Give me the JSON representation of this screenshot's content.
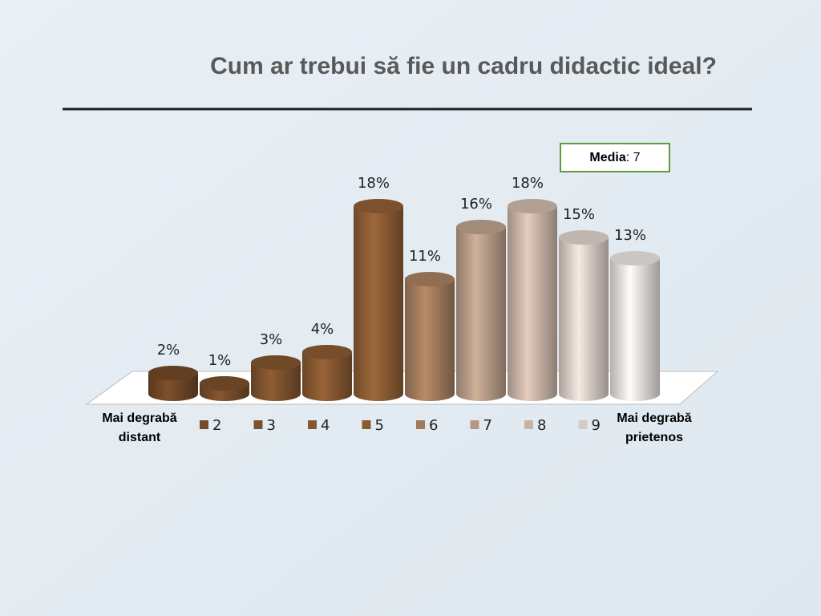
{
  "chart_data": {
    "type": "bar",
    "title": "Cum ar trebui să fie un cadru didactic ideal?",
    "categories": [
      null,
      "2",
      "3",
      "4",
      "5",
      "6",
      "7",
      "8",
      "9",
      null
    ],
    "values": [
      2,
      1,
      3,
      4,
      18,
      11,
      16,
      18,
      15,
      13
    ],
    "value_labels": [
      "2%",
      "1%",
      "3%",
      "4%",
      "18%",
      "11%",
      "16%",
      "18%",
      "15%",
      "13%"
    ],
    "colors": [
      "#6e4626",
      "#754b29",
      "#7c512d",
      "#845730",
      "#8a5b33",
      "#a07a5c",
      "#b49a86",
      "#c7b2a4",
      "#d6cbc4",
      "#e3dcd8"
    ],
    "left_label": "Mai degrabă distant",
    "right_label": "Mai degrabă prietenos",
    "media": {
      "label": "Media",
      "text": ": 7"
    }
  }
}
